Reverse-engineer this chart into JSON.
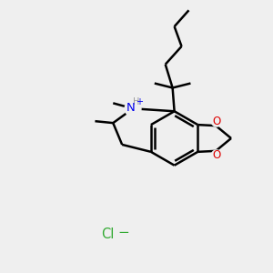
{
  "bg_color": "#efefef",
  "bond_color": "#000000",
  "bond_lw": 1.8,
  "N_color": "#0000ee",
  "O_color": "#dd0000",
  "Cl_color": "#33aa33",
  "fig_size": [
    3.0,
    3.0
  ],
  "dpi": 100,
  "xlim": [
    0,
    300
  ],
  "ylim": [
    0,
    300
  ]
}
